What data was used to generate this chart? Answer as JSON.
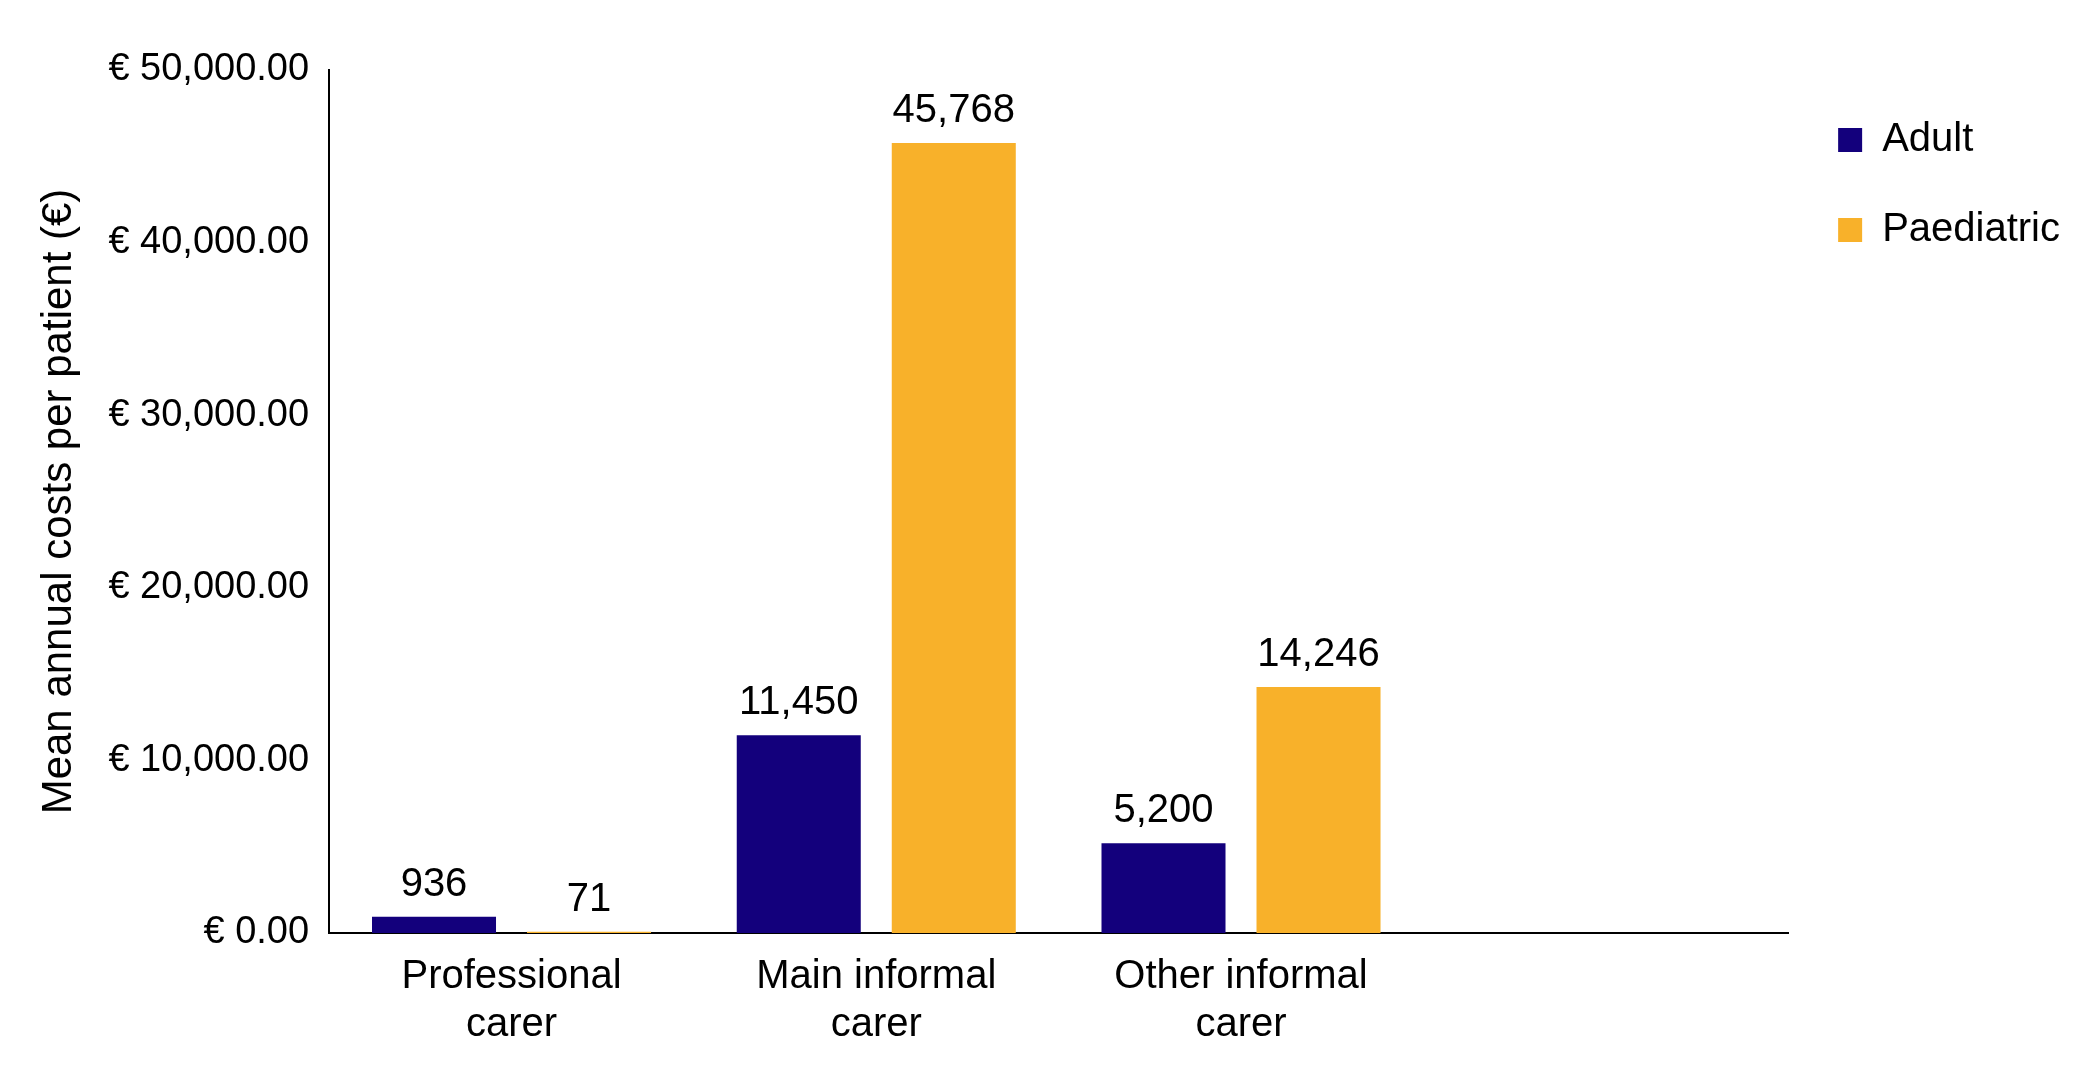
{
  "chart_data": {
    "type": "bar",
    "ylabel": "Mean annual costs per patient (€)",
    "categories": [
      "Professional carer",
      "Main informal carer",
      "Other informal carer",
      null
    ],
    "series": [
      {
        "name": "Adult",
        "color": "#13007c",
        "values": [
          936,
          11450,
          5200,
          null
        ],
        "value_labels": [
          "936",
          "11,450",
          "5,200",
          null
        ]
      },
      {
        "name": "Paediatric",
        "color": "#f8b12a",
        "values": [
          71,
          45768,
          14246,
          null
        ],
        "value_labels": [
          "71",
          "45,768",
          "14,246",
          null
        ]
      }
    ],
    "ylim": [
      0,
      50000
    ],
    "yticks": [
      {
        "value": 0,
        "label": "€ 0.00"
      },
      {
        "value": 10000,
        "label": "€ 10,000.00"
      },
      {
        "value": 20000,
        "label": "€ 20,000.00"
      },
      {
        "value": 30000,
        "label": "€ 30,000.00"
      },
      {
        "value": 40000,
        "label": "€ 40,000.00"
      },
      {
        "value": 50000,
        "label": "€ 50,000.00"
      }
    ],
    "grid": false,
    "legend": "top right"
  }
}
